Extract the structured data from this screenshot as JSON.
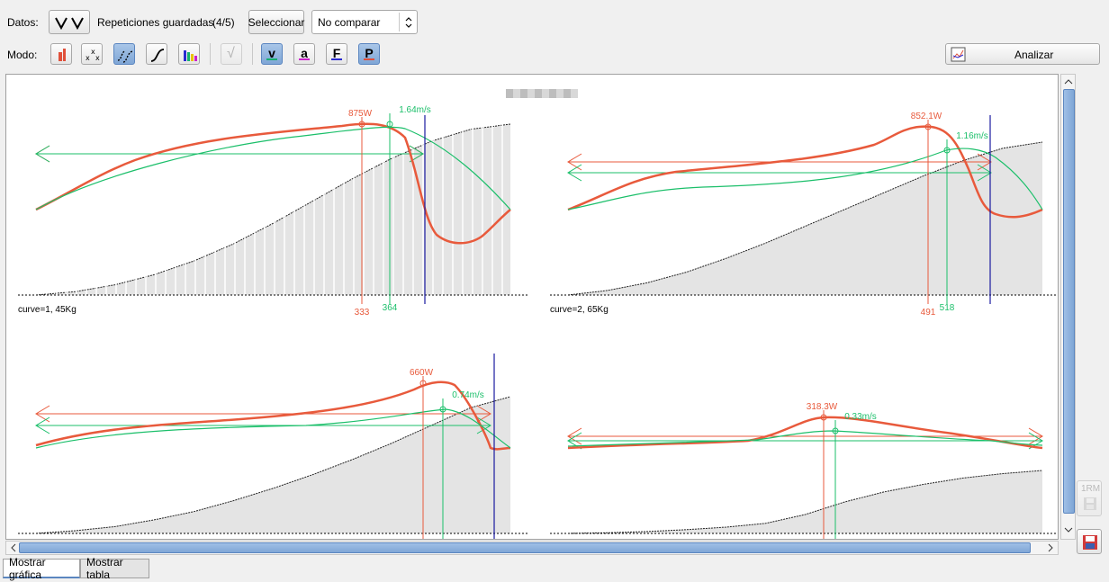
{
  "toolbar": {
    "datos_label": "Datos:",
    "repeticiones_label": "Repeticiones guardadas",
    "count": "(4/5)",
    "select_button": "Seleccionar",
    "compare_value": "No comparar",
    "modo_label": "Modo:",
    "mode_buttons": [
      {
        "icon": "bar-chart-icon",
        "active": false
      },
      {
        "icon": "scatter-icon",
        "active": false
      },
      {
        "icon": "multi-curve-icon",
        "active": true
      },
      {
        "icon": "single-curve-icon",
        "active": false
      },
      {
        "icon": "color-bars-icon",
        "active": false
      }
    ],
    "sqrt_button": "√",
    "variable_buttons": [
      {
        "letter": "v",
        "active": true,
        "color": "#14b06f"
      },
      {
        "letter": "a",
        "active": false,
        "color": "#cc1fcc"
      },
      {
        "letter": "F",
        "active": false,
        "color": "#2a2ad0"
      },
      {
        "letter": "P",
        "active": true,
        "color": "#e0503a"
      }
    ],
    "analyze_button": "Analizar"
  },
  "plots": [
    {
      "caption": "curve=1, 45Kg",
      "power_peak": "875W",
      "speed_peak": "1.64m/s",
      "x_power": "333",
      "x_speed": "364"
    },
    {
      "caption": "curve=2, 65Kg",
      "power_peak": "852.1W",
      "speed_peak": "1.16m/s",
      "x_power": "491",
      "x_speed": "518"
    },
    {
      "caption": "",
      "power_peak": "660W",
      "speed_peak": "0.74m/s",
      "x_power": "",
      "x_speed": ""
    },
    {
      "caption": "",
      "power_peak": "318.3W",
      "speed_peak": "0.33m/s",
      "x_power": "",
      "x_speed": ""
    }
  ],
  "side": {
    "onerm_label": "1RM"
  },
  "tabs": [
    "Mostrar gráfica",
    "Mostrar tabla"
  ],
  "colors": {
    "power": "#e85a3c",
    "speed": "#1bbf6a",
    "accent": "#7fa6d6"
  }
}
